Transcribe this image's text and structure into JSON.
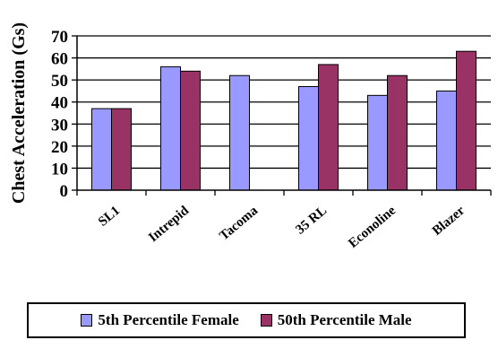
{
  "chart_data": {
    "type": "bar",
    "ylabel": "Chest Acceleration (Gs)",
    "categories": [
      "SL1",
      "Intrepid",
      "Tacoma",
      "35 RL",
      "Econoline",
      "Blazer"
    ],
    "series": [
      {
        "name": "5th Percentile Female",
        "color": "#9999ff",
        "values": [
          37,
          56,
          52,
          47,
          43,
          45
        ]
      },
      {
        "name": "50th Percentile Male",
        "color": "#993366",
        "values": [
          37,
          54,
          null,
          57,
          52,
          63
        ]
      }
    ],
    "ylim": [
      0,
      70
    ],
    "yticks": [
      "0",
      "10",
      "20",
      "30",
      "40",
      "50",
      "60",
      "70"
    ],
    "grid": true,
    "legend_position": "bottom"
  }
}
